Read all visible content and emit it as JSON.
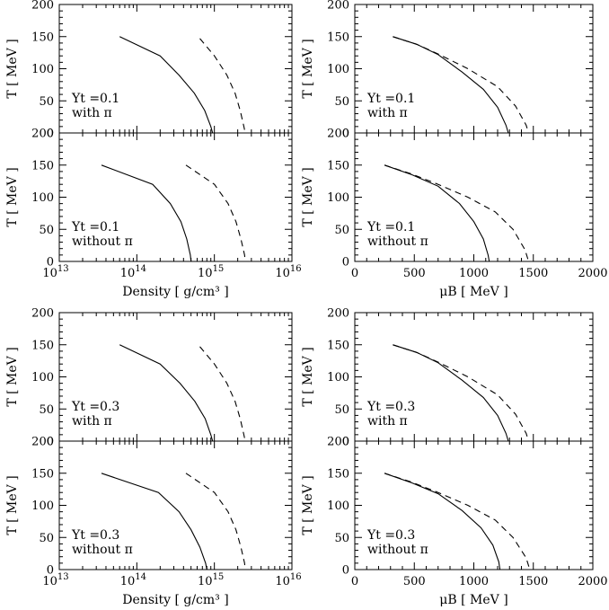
{
  "chart_data": [
    {
      "type": "line",
      "id": "panel-a",
      "group": "Yt=0.1 density",
      "xscale": "log",
      "xlim": [
        10000000000000.0,
        1e+16
      ],
      "ylim": [
        0,
        200
      ],
      "ylabel": "T [ MeV ]",
      "xlabel": "",
      "annotation": [
        "Yt =0.1",
        "with π"
      ],
      "series": [
        {
          "name": "solid",
          "style": "solid",
          "x": [
            60000000000000.0,
            200000000000000.0,
            350000000000000.0,
            550000000000000.0,
            750000000000000.0,
            900000000000000.0,
            950000000000000.0
          ],
          "y": [
            150,
            120,
            90,
            62,
            35,
            10,
            0
          ]
        },
        {
          "name": "dashed",
          "style": "dashed",
          "x": [
            650000000000000.0,
            1000000000000000.0,
            1450000000000000.0,
            1850000000000000.0,
            2150000000000000.0,
            2400000000000000.0,
            2500000000000000.0
          ],
          "y": [
            147,
            120,
            90,
            62,
            35,
            10,
            0
          ]
        }
      ]
    },
    {
      "type": "line",
      "id": "panel-b",
      "group": "Yt=0.1 density",
      "xscale": "log",
      "xlim": [
        10000000000000.0,
        1e+16
      ],
      "ylim": [
        0,
        200
      ],
      "ylabel": "T [ MeV ]",
      "xlabel": "Density [ g/cm³ ]",
      "annotation": [
        "Yt =0.1",
        "without π"
      ],
      "series": [
        {
          "name": "solid",
          "style": "solid",
          "x": [
            35000000000000.0,
            160000000000000.0,
            270000000000000.0,
            370000000000000.0,
            440000000000000.0,
            490000000000000.0,
            500000000000000.0
          ],
          "y": [
            150,
            120,
            90,
            62,
            35,
            10,
            0
          ]
        },
        {
          "name": "dashed",
          "style": "dashed",
          "x": [
            430000000000000.0,
            1000000000000000.0,
            1500000000000000.0,
            1900000000000000.0,
            2200000000000000.0,
            2450000000000000.0,
            2500000000000000.0
          ],
          "y": [
            150,
            120,
            90,
            62,
            35,
            10,
            0
          ]
        }
      ]
    },
    {
      "type": "line",
      "id": "panel-c",
      "group": "Yt=0.1 mu",
      "xscale": "linear",
      "xlim": [
        0,
        2000
      ],
      "ylim": [
        0,
        200
      ],
      "ylabel": "T [ MeV ]",
      "xlabel": "",
      "annotation": [
        "Yt =0.1",
        "with π"
      ],
      "series": [
        {
          "name": "solid",
          "style": "solid",
          "x": [
            320,
            520,
            700,
            900,
            1080,
            1200,
            1270,
            1290
          ],
          "y": [
            150,
            138,
            122,
            95,
            68,
            40,
            12,
            0
          ]
        },
        {
          "name": "dashed",
          "style": "dashed",
          "x": [
            320,
            520,
            700,
            950,
            1200,
            1350,
            1440,
            1460
          ],
          "y": [
            150,
            138,
            123,
            100,
            72,
            42,
            12,
            0
          ]
        }
      ]
    },
    {
      "type": "line",
      "id": "panel-d",
      "group": "Yt=0.1 mu",
      "xscale": "linear",
      "xlim": [
        0,
        2000
      ],
      "ylim": [
        0,
        200
      ],
      "ylabel": "T [ MeV ]",
      "xlabel": "μB [ MeV ]",
      "annotation": [
        "Yt =0.1",
        "without π"
      ],
      "series": [
        {
          "name": "solid",
          "style": "solid",
          "x": [
            250,
            480,
            700,
            880,
            1000,
            1080,
            1120,
            1130
          ],
          "y": [
            150,
            135,
            117,
            90,
            62,
            35,
            10,
            0
          ]
        },
        {
          "name": "dashed",
          "style": "dashed",
          "x": [
            250,
            480,
            700,
            950,
            1180,
            1330,
            1430,
            1460
          ],
          "y": [
            150,
            136,
            120,
            100,
            77,
            50,
            18,
            0
          ]
        }
      ]
    },
    {
      "type": "line",
      "id": "panel-e",
      "group": "Yt=0.3 density",
      "xscale": "log",
      "xlim": [
        10000000000000.0,
        1e+16
      ],
      "ylim": [
        0,
        200
      ],
      "ylabel": "T [ MeV ]",
      "xlabel": "",
      "annotation": [
        "Yt =0.3",
        "with π"
      ],
      "series": [
        {
          "name": "solid",
          "style": "solid",
          "x": [
            60000000000000.0,
            200000000000000.0,
            360000000000000.0,
            560000000000000.0,
            760000000000000.0,
            900000000000000.0,
            950000000000000.0
          ],
          "y": [
            150,
            120,
            90,
            62,
            35,
            10,
            0
          ]
        },
        {
          "name": "dashed",
          "style": "dashed",
          "x": [
            650000000000000.0,
            1000000000000000.0,
            1450000000000000.0,
            1850000000000000.0,
            2150000000000000.0,
            2400000000000000.0,
            2500000000000000.0
          ],
          "y": [
            147,
            120,
            90,
            62,
            35,
            10,
            0
          ]
        }
      ]
    },
    {
      "type": "line",
      "id": "panel-f",
      "group": "Yt=0.3 density",
      "xscale": "log",
      "xlim": [
        10000000000000.0,
        1e+16
      ],
      "ylim": [
        0,
        200
      ],
      "ylabel": "T [ MeV ]",
      "xlabel": "Density [ g/cm³ ]",
      "annotation": [
        "Yt =0.3",
        "without π"
      ],
      "series": [
        {
          "name": "solid",
          "style": "solid",
          "x": [
            35000000000000.0,
            190000000000000.0,
            350000000000000.0,
            500000000000000.0,
            650000000000000.0,
            770000000000000.0,
            800000000000000.0
          ],
          "y": [
            150,
            120,
            90,
            62,
            35,
            10,
            0
          ]
        },
        {
          "name": "dashed",
          "style": "dashed",
          "x": [
            430000000000000.0,
            1000000000000000.0,
            1500000000000000.0,
            1900000000000000.0,
            2200000000000000.0,
            2450000000000000.0,
            2500000000000000.0
          ],
          "y": [
            150,
            120,
            90,
            62,
            35,
            10,
            0
          ]
        }
      ]
    },
    {
      "type": "line",
      "id": "panel-g",
      "group": "Yt=0.3 mu",
      "xscale": "linear",
      "xlim": [
        0,
        2000
      ],
      "ylim": [
        0,
        200
      ],
      "ylabel": "T [ MeV ]",
      "xlabel": "",
      "annotation": [
        "Yt =0.3",
        "with π"
      ],
      "series": [
        {
          "name": "solid",
          "style": "solid",
          "x": [
            320,
            520,
            700,
            900,
            1080,
            1200,
            1270,
            1290
          ],
          "y": [
            150,
            138,
            122,
            95,
            68,
            40,
            12,
            0
          ]
        },
        {
          "name": "dashed",
          "style": "dashed",
          "x": [
            320,
            520,
            700,
            950,
            1200,
            1350,
            1440,
            1460
          ],
          "y": [
            150,
            138,
            123,
            100,
            72,
            42,
            12,
            0
          ]
        }
      ]
    },
    {
      "type": "line",
      "id": "panel-h",
      "group": "Yt=0.3 mu",
      "xscale": "linear",
      "xlim": [
        0,
        2000
      ],
      "ylim": [
        0,
        200
      ],
      "ylabel": "T [ MeV ]",
      "xlabel": "μB [ MeV ]",
      "annotation": [
        "Yt =0.3",
        "without π"
      ],
      "series": [
        {
          "name": "solid",
          "style": "solid",
          "x": [
            250,
            480,
            700,
            900,
            1060,
            1160,
            1210,
            1220
          ],
          "y": [
            150,
            135,
            118,
            92,
            65,
            38,
            12,
            0
          ]
        },
        {
          "name": "dashed",
          "style": "dashed",
          "x": [
            250,
            480,
            700,
            950,
            1180,
            1330,
            1440,
            1470
          ],
          "y": [
            150,
            136,
            120,
            100,
            77,
            50,
            18,
            0
          ]
        }
      ]
    }
  ],
  "axes": {
    "y_ticks": [
      0,
      50,
      100,
      150,
      200
    ],
    "density_ticks": [
      "10",
      "10",
      "10",
      "10"
    ],
    "density_exponents": [
      "13",
      "14",
      "15",
      "16"
    ],
    "mu_ticks": [
      "0",
      "500",
      "1000",
      "1500",
      "2000"
    ]
  }
}
